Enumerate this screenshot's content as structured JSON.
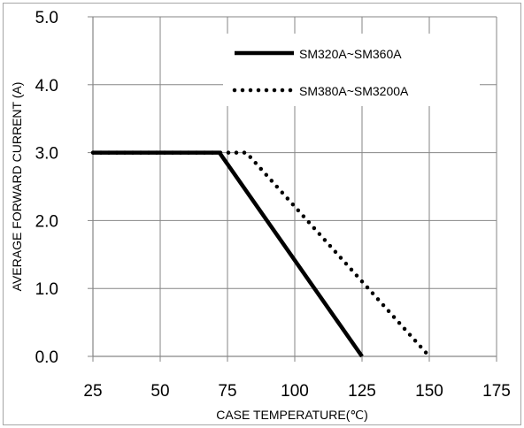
{
  "chart_data": {
    "type": "line",
    "xlabel": "CASE TEMPERATURE(℃)",
    "ylabel": "AVERAGE FORWARD CURRENT (A)",
    "xlim": [
      25,
      175
    ],
    "ylim": [
      0,
      5
    ],
    "x_ticks": [
      "25",
      "50",
      "75",
      "100",
      "125",
      "150",
      "175"
    ],
    "y_ticks": [
      "0.0",
      "1.0",
      "2.0",
      "3.0",
      "4.0",
      "5.0"
    ],
    "grid": true,
    "legend_position": "top-right",
    "series": [
      {
        "name": "SM320A~SM360A",
        "style": "solid",
        "color": "#000000",
        "points": [
          [
            25,
            3.0
          ],
          [
            72,
            3.0
          ],
          [
            125,
            0.0
          ]
        ]
      },
      {
        "name": "SM380A~SM3200A",
        "style": "dotted",
        "color": "#000000",
        "points": [
          [
            25,
            3.0
          ],
          [
            82,
            3.0
          ],
          [
            150,
            0.0
          ]
        ]
      }
    ]
  }
}
